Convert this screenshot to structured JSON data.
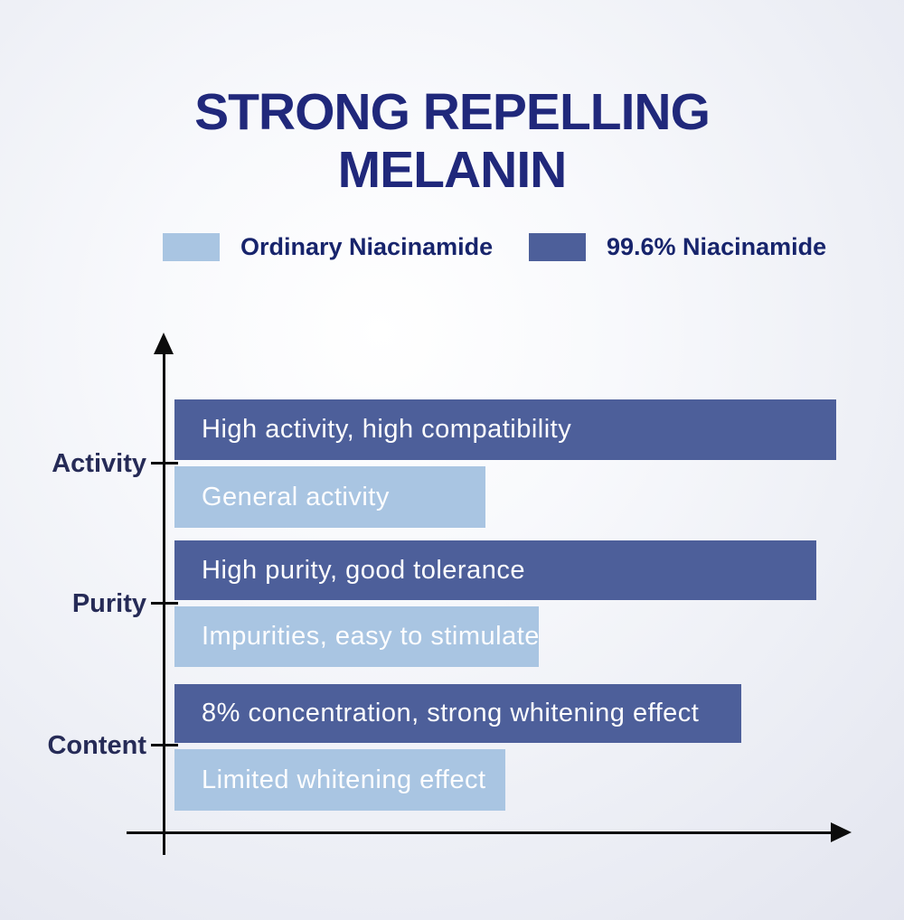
{
  "title": {
    "line1": "STRONG REPELLING",
    "line2": "MELANIN"
  },
  "colors": {
    "title_navy": "#20287b",
    "legend_text_navy": "#17246c",
    "category_label_navy": "#262b57",
    "axis_black": "#0c0c0c",
    "bar_text_white": "#fdfdfe",
    "ordinary_light_blue": "#a9c5e2",
    "pure_dark_blue": "#4d5f9a"
  },
  "legend": {
    "items": [
      {
        "label": "Ordinary Niacinamide",
        "color": "#a9c5e2"
      },
      {
        "label": "99.6% Niacinamide",
        "color": "#4d5f9a"
      }
    ]
  },
  "chart_data": {
    "type": "bar",
    "orientation": "horizontal",
    "title": "STRONG REPELLING MELANIN",
    "categories": [
      "Activity",
      "Purity",
      "Content"
    ],
    "series": [
      {
        "name": "99.6% Niacinamide",
        "color": "#4d5f9a",
        "values": [
          98,
          95,
          84
        ],
        "labels": [
          "High activity, high compatibility",
          "High purity, good tolerance",
          "8% concentration, strong whitening effect"
        ]
      },
      {
        "name": "Ordinary Niacinamide",
        "color": "#a9c5e2",
        "values": [
          46,
          54,
          49
        ],
        "labels": [
          "General activity",
          "Impurities, easy to stimulate",
          "Limited whitening effect"
        ]
      }
    ],
    "xlabel": "",
    "ylabel": "",
    "xlim": [
      0,
      100
    ],
    "grid": false,
    "legend_position": "top"
  }
}
